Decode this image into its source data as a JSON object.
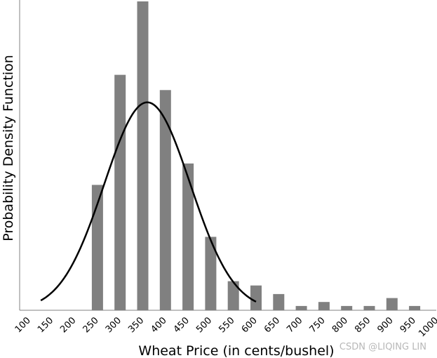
{
  "chart_data": {
    "type": "bar",
    "title": "",
    "xlabel": "Wheat Price (in cents/bushel)",
    "ylabel": "Probability Density Function",
    "categories": [
      "100",
      "150",
      "200",
      "250",
      "300",
      "350",
      "400",
      "450",
      "500",
      "550",
      "600",
      "650",
      "700",
      "750",
      "800",
      "850",
      "900",
      "950",
      "1000"
    ],
    "series": [
      {
        "type": "bar",
        "values": [
          0,
          0,
          0,
          0.41,
          0.77,
          1.01,
          0.72,
          0.48,
          0.24,
          0.095,
          0.081,
          0.053,
          0.014,
          0.027,
          0.014,
          0.014,
          0.04,
          0.014,
          0
        ],
        "color": "#808080"
      },
      {
        "type": "line",
        "curve": "normal-pdf",
        "x_range": [
          125,
          600
        ],
        "peak_x": 360,
        "peak_value": 0.68,
        "sigma": 95,
        "color": "#000000"
      }
    ],
    "ylim": [
      0,
      1.01
    ],
    "grid": false,
    "legend": "none"
  },
  "watermark": "CSDN @LIQING LIN"
}
